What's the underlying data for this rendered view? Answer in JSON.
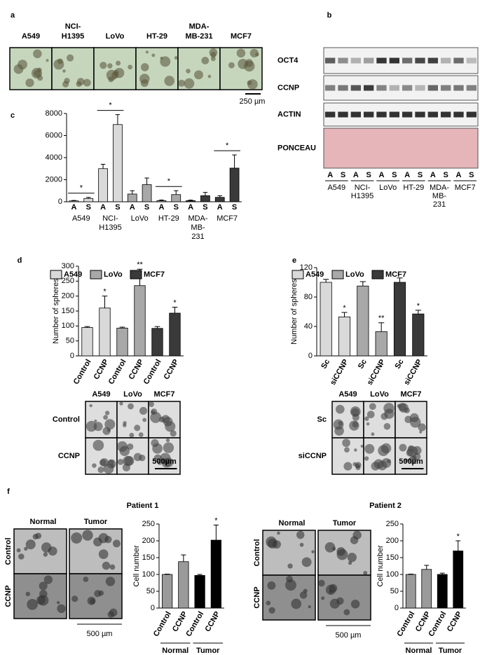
{
  "figure": {
    "panel_labels": [
      "a",
      "b",
      "c",
      "d",
      "e",
      "f"
    ]
  },
  "panel_a": {
    "labels": [
      [
        "A549"
      ],
      [
        "NCI-",
        "H1395"
      ],
      [
        "LoVo"
      ],
      [
        "HT-29"
      ],
      [
        "MDA-",
        "MB-231"
      ],
      [
        "MCF7"
      ]
    ],
    "scale_bar": "250 µm"
  },
  "panel_b": {
    "rows": [
      "OCT4",
      "CCNP",
      "ACTIN",
      "PONCEAU"
    ],
    "lanes": [
      "A",
      "S"
    ],
    "groups": [
      [
        "A549"
      ],
      [
        "NCI-",
        "H1395"
      ],
      [
        "LoVo"
      ],
      [
        "HT-29"
      ],
      [
        "MDA-",
        "MB-",
        "231"
      ],
      [
        "MCF7"
      ]
    ]
  },
  "panel_d_images": {
    "columns": [
      "A549",
      "LoVo",
      "MCF7"
    ],
    "rows": [
      "Control",
      "CCNP"
    ],
    "scale_bar": "500µm"
  },
  "panel_e_images": {
    "columns": [
      "A549",
      "LoVo",
      "MCF7"
    ],
    "rows": [
      "Sc",
      "siCCNP"
    ],
    "scale_bar": "500µm"
  },
  "panel_f_images": [
    {
      "columns": [
        "Normal",
        "Tumor"
      ],
      "rows": [
        "Control",
        "CCNP"
      ],
      "scale_bar": "500 µm"
    },
    {
      "columns": [
        "Normal",
        "Tumor"
      ],
      "rows": [
        "Control",
        "CCNP"
      ],
      "scale_bar": "500 µm"
    }
  ],
  "chart_data": [
    {
      "type": "bar",
      "categories": [
        "A",
        "S",
        "A",
        "S",
        "A",
        "S",
        "A",
        "S",
        "A",
        "S",
        "A",
        "S"
      ],
      "groups": [
        [
          "A549"
        ],
        [
          "NCI-",
          "H1395"
        ],
        [
          "LoVo"
        ],
        [
          "HT-29"
        ],
        [
          "MDA-",
          "MB-",
          "231"
        ],
        [
          "MCF7"
        ]
      ],
      "values": [
        80,
        300,
        3000,
        7000,
        700,
        1550,
        100,
        650,
        100,
        550,
        400,
        3050
      ],
      "errors": [
        40,
        100,
        400,
        900,
        300,
        600,
        60,
        350,
        50,
        300,
        150,
        1200
      ],
      "colors": [
        "#d9d9d9",
        "#d9d9d9",
        "#d9d9d9",
        "#d9d9d9",
        "#a8a8a8",
        "#a8a8a8",
        "#a8a8a8",
        "#a8a8a8",
        "#3a3a3a",
        "#3a3a3a",
        "#3a3a3a",
        "#3a3a3a"
      ],
      "significance": [
        "*",
        "*",
        null,
        "*",
        null,
        "*"
      ],
      "ylim": [
        0,
        8000
      ],
      "yticks": [
        0,
        2000,
        4000,
        6000,
        8000
      ]
    },
    {
      "type": "bar",
      "y_label": "Number of spheres",
      "legend": [
        {
          "name": "A549",
          "color": "#d9d9d9"
        },
        {
          "name": "LoVo",
          "color": "#a8a8a8"
        },
        {
          "name": "MCF7",
          "color": "#3a3a3a"
        }
      ],
      "categories": [
        "Control",
        "CCNP",
        "Control",
        "CCNP",
        "Control",
        "CCNP"
      ],
      "values": [
        95,
        160,
        93,
        235,
        92,
        143
      ],
      "errors": [
        3,
        40,
        3,
        55,
        6,
        20
      ],
      "colors": [
        "#d9d9d9",
        "#d9d9d9",
        "#a8a8a8",
        "#a8a8a8",
        "#3a3a3a",
        "#3a3a3a"
      ],
      "significance": [
        null,
        "*",
        null,
        "**",
        null,
        "*"
      ],
      "ylim": [
        0,
        300
      ],
      "yticks": [
        0,
        50,
        100,
        150,
        200,
        250,
        300
      ]
    },
    {
      "type": "bar",
      "y_label": "Number of spheres",
      "legend": [
        {
          "name": "A549",
          "color": "#d9d9d9"
        },
        {
          "name": "LoVo",
          "color": "#a8a8a8"
        },
        {
          "name": "MCF7",
          "color": "#3a3a3a"
        }
      ],
      "categories": [
        "Sc",
        "siCCNP",
        "Sc",
        "siCCNP",
        "Sc",
        "siCCNP"
      ],
      "values": [
        100,
        53,
        95,
        33,
        100,
        57
      ],
      "errors": [
        4,
        6,
        6,
        12,
        6,
        5
      ],
      "colors": [
        "#d9d9d9",
        "#d9d9d9",
        "#a8a8a8",
        "#a8a8a8",
        "#3a3a3a",
        "#3a3a3a"
      ],
      "significance": [
        null,
        "*",
        null,
        "**",
        null,
        "*"
      ],
      "ylim": [
        0,
        120
      ],
      "yticks": [
        0,
        40,
        80,
        120
      ]
    },
    {
      "type": "bar",
      "title": "Patient 1",
      "y_label": "Cell number",
      "categories": [
        "Control",
        "CCNP",
        "Control",
        "CCNP"
      ],
      "groups": [
        "Normal",
        "Tumor"
      ],
      "values": [
        100,
        138,
        97,
        202
      ],
      "errors": [
        1,
        20,
        3,
        45
      ],
      "colors": [
        "#9a9a9a",
        "#9a9a9a",
        "#000000",
        "#000000"
      ],
      "significance": [
        null,
        null,
        null,
        "*"
      ],
      "ylim": [
        0,
        250
      ],
      "yticks": [
        0,
        50,
        100,
        150,
        200,
        250
      ]
    },
    {
      "type": "bar",
      "title": "Patient 2",
      "y_label": "Cell number",
      "categories": [
        "Control",
        "CCNP",
        "Control",
        "CCNP"
      ],
      "groups": [
        "Normal",
        "Tumor"
      ],
      "values": [
        100,
        115,
        100,
        170
      ],
      "errors": [
        1,
        12,
        4,
        30
      ],
      "colors": [
        "#9a9a9a",
        "#9a9a9a",
        "#000000",
        "#000000"
      ],
      "significance": [
        null,
        null,
        null,
        "*"
      ],
      "ylim": [
        0,
        250
      ],
      "yticks": [
        0,
        50,
        100,
        150,
        200,
        250
      ]
    }
  ]
}
